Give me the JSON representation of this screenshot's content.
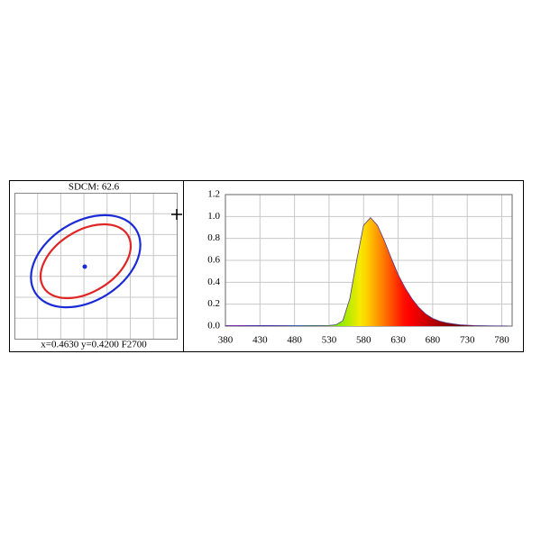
{
  "chart_data": [
    {
      "type": "sdcm",
      "title": "SDCM:  62.6",
      "footer": "x=0.4630 y=0.4200 F2700"
    },
    {
      "type": "area",
      "x": [
        380,
        390,
        400,
        410,
        420,
        430,
        440,
        450,
        460,
        470,
        480,
        490,
        500,
        510,
        520,
        530,
        540,
        550,
        560,
        570,
        580,
        590,
        600,
        610,
        620,
        630,
        640,
        650,
        660,
        670,
        680,
        690,
        700,
        710,
        720,
        730,
        740,
        750,
        760,
        770,
        780,
        790
      ],
      "values": [
        0.005,
        0.005,
        0.005,
        0.005,
        0.005,
        0.005,
        0.005,
        0.005,
        0.005,
        0.005,
        0.005,
        0.005,
        0.005,
        0.005,
        0.005,
        0.006,
        0.012,
        0.05,
        0.25,
        0.6,
        0.92,
        0.99,
        0.92,
        0.78,
        0.62,
        0.47,
        0.35,
        0.25,
        0.17,
        0.11,
        0.07,
        0.045,
        0.03,
        0.02,
        0.012,
        0.008,
        0.005,
        0.004,
        0.003,
        0.002,
        0.002,
        0.001
      ],
      "xlim": [
        380,
        795
      ],
      "ylim": [
        0,
        1.2
      ],
      "xticks": [
        380,
        430,
        480,
        530,
        580,
        630,
        680,
        730,
        780
      ],
      "yticks": [
        {
          "value": 0,
          "label": "0.0"
        },
        0.2,
        0.4,
        0.6,
        0.8,
        {
          "value": 1,
          "label": "1.0"
        },
        1.2
      ],
      "grid": true
    }
  ]
}
